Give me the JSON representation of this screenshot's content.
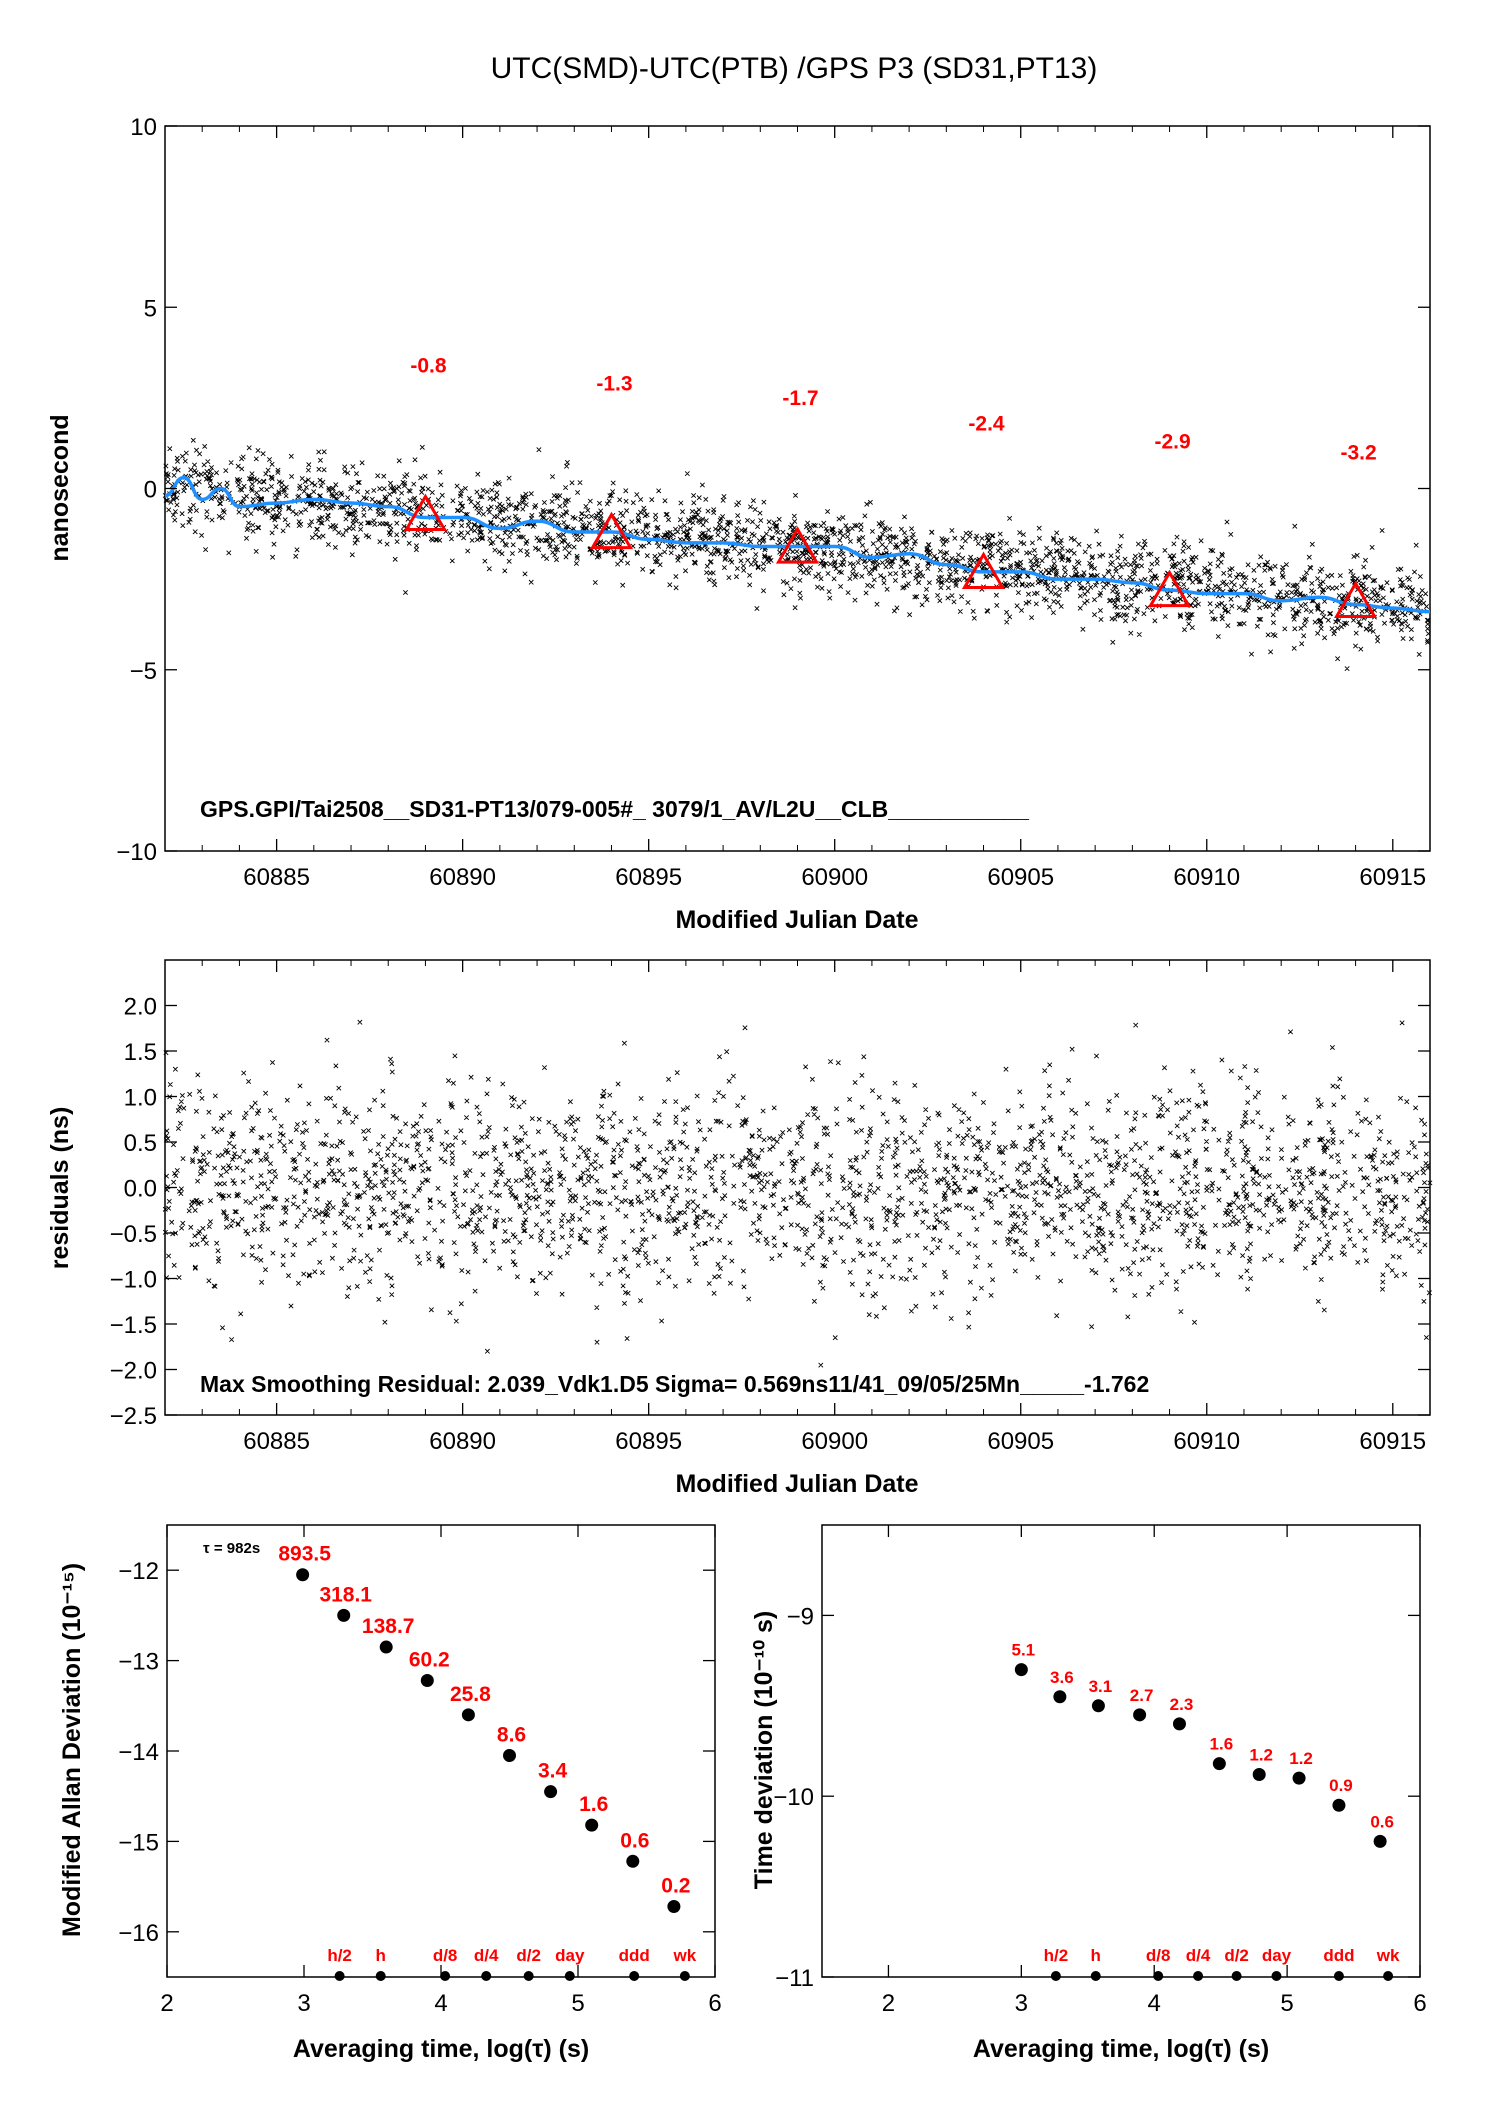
{
  "title": "UTC(SMD)-UTC(PTB)  /GPS  P3  (SD31,PT13)",
  "colors": {
    "smooth": "#1e90ff",
    "marker": "#ff0000",
    "points": "#000000",
    "labels": "#ff0000"
  },
  "chart_data": [
    {
      "type": "scatter",
      "xlabel": "Modified Julian Date",
      "ylabel": "nanosecond",
      "xlim": [
        60882,
        60916
      ],
      "ylim": [
        -10,
        10
      ],
      "xticks": [
        60885,
        60890,
        60895,
        60900,
        60905,
        60910,
        60915
      ],
      "yticks": [
        10,
        5,
        0,
        -5,
        -10
      ],
      "ytick_labels": [
        "10",
        "5",
        "0",
        "−5",
        "−10"
      ],
      "scatter_trend": {
        "start": 0.0,
        "end": -3.35,
        "spread": 0.58,
        "count": 2400
      },
      "smooth_line": {
        "x": [
          60882,
          60882.5,
          60883,
          60883.5,
          60884,
          60885,
          60886,
          60887,
          60888,
          60889,
          60890,
          60891,
          60892,
          60893,
          60894,
          60895,
          60896,
          60897,
          60898,
          60899,
          60900,
          60901,
          60902,
          60903,
          60904,
          60905,
          60906,
          60907,
          60908,
          60909,
          60910,
          60911,
          60912,
          60913,
          60914,
          60915,
          60916
        ],
        "y": [
          -0.2,
          0.3,
          -0.3,
          0.0,
          -0.5,
          -0.4,
          -0.3,
          -0.4,
          -0.5,
          -0.8,
          -0.8,
          -1.1,
          -0.9,
          -1.2,
          -1.2,
          -1.4,
          -1.5,
          -1.5,
          -1.6,
          -1.6,
          -1.6,
          -1.9,
          -1.8,
          -2.1,
          -2.3,
          -2.3,
          -2.5,
          -2.5,
          -2.6,
          -2.8,
          -2.9,
          -2.9,
          -3.1,
          -3.0,
          -3.2,
          -3.3,
          -3.4
        ]
      },
      "markers": [
        {
          "x": 60889,
          "y": -0.8,
          "label": "-0.8"
        },
        {
          "x": 60894,
          "y": -1.3,
          "label": "-1.3"
        },
        {
          "x": 60899,
          "y": -1.7,
          "label": "-1.7"
        },
        {
          "x": 60904,
          "y": -2.4,
          "label": "-2.4"
        },
        {
          "x": 60909,
          "y": -2.9,
          "label": "-2.9"
        },
        {
          "x": 60914,
          "y": -3.2,
          "label": "-3.2"
        }
      ],
      "annotation": "GPS.GPI/Tai2508__SD31-PT13/079-005#_  3079/1_AV/L2U__CLB___________"
    },
    {
      "type": "scatter",
      "xlabel": "Modified Julian Date",
      "ylabel": "residuals (ns)",
      "xlim": [
        60882,
        60916
      ],
      "ylim": [
        -2.5,
        2.5
      ],
      "xticks": [
        60885,
        60890,
        60895,
        60900,
        60905,
        60910,
        60915
      ],
      "yticks": [
        2.0,
        1.5,
        1.0,
        0.5,
        0.0,
        -0.5,
        -1.0,
        -1.5,
        -2.0,
        -2.5
      ],
      "ytick_labels": [
        "2.0",
        "1.5",
        "1.0",
        "0.5",
        "0.0",
        "−0.5",
        "−1.0",
        "−1.5",
        "−2.0",
        "−2.5"
      ],
      "scatter_trend": {
        "start": 0.0,
        "end": 0.0,
        "spread": 0.57,
        "count": 2400
      },
      "annotation": "Max Smoothing Residual: 2.039_Vdk1.D5  Sigma= 0.569ns11/41_09/05/25Mn_____-1.762"
    },
    {
      "type": "scatter",
      "xlabel": "Averaging time, log(τ) (s)",
      "ylabel": "Modified Allan Deviation (10⁻¹⁵)",
      "xlim": [
        2,
        6
      ],
      "ylim": [
        -16.5,
        -11.5
      ],
      "xticks": [
        2,
        3,
        4,
        5,
        6
      ],
      "yticks": [
        -12,
        -13,
        -14,
        -15,
        -16
      ],
      "ytick_labels": [
        "−12",
        "−13",
        "−14",
        "−15",
        "−16"
      ],
      "tau_note": "τ = 982s",
      "points": [
        {
          "x": 2.99,
          "y": -12.05,
          "label": "893.5"
        },
        {
          "x": 3.29,
          "y": -12.5,
          "label": "318.1"
        },
        {
          "x": 3.6,
          "y": -12.85,
          "label": "138.7"
        },
        {
          "x": 3.9,
          "y": -13.22,
          "label": "60.2"
        },
        {
          "x": 4.2,
          "y": -13.6,
          "label": "25.8"
        },
        {
          "x": 4.5,
          "y": -14.05,
          "label": "8.6"
        },
        {
          "x": 4.8,
          "y": -14.45,
          "label": "3.4"
        },
        {
          "x": 5.1,
          "y": -14.82,
          "label": "1.6"
        },
        {
          "x": 5.4,
          "y": -15.22,
          "label": "0.6"
        },
        {
          "x": 5.7,
          "y": -15.72,
          "label": "0.2"
        }
      ],
      "bottom_marks": [
        {
          "x": 3.26,
          "label": "h/2"
        },
        {
          "x": 3.56,
          "label": "h"
        },
        {
          "x": 4.03,
          "label": "d/8"
        },
        {
          "x": 4.33,
          "label": "d/4"
        },
        {
          "x": 4.64,
          "label": "d/2"
        },
        {
          "x": 4.94,
          "label": "day"
        },
        {
          "x": 5.41,
          "label": "ddd"
        },
        {
          "x": 5.78,
          "label": "wk"
        }
      ]
    },
    {
      "type": "scatter",
      "xlabel": "Averaging time, log(τ) (s)",
      "ylabel": "Time deviation (10⁻¹⁰ s)",
      "xlim": [
        1.5,
        6
      ],
      "ylim": [
        -11,
        -8.5
      ],
      "xticks": [
        2,
        3,
        4,
        5,
        6
      ],
      "yticks": [
        -9,
        -10,
        -11
      ],
      "ytick_labels": [
        "−9",
        "−10",
        "−11"
      ],
      "points": [
        {
          "x": 3.0,
          "y": -9.3,
          "label": "5.1"
        },
        {
          "x": 3.29,
          "y": -9.45,
          "label": "3.6"
        },
        {
          "x": 3.58,
          "y": -9.5,
          "label": "3.1"
        },
        {
          "x": 3.89,
          "y": -9.55,
          "label": "2.7"
        },
        {
          "x": 4.19,
          "y": -9.6,
          "label": "2.3"
        },
        {
          "x": 4.49,
          "y": -9.82,
          "label": "1.6"
        },
        {
          "x": 4.79,
          "y": -9.88,
          "label": "1.2"
        },
        {
          "x": 5.09,
          "y": -9.9,
          "label": "1.2"
        },
        {
          "x": 5.39,
          "y": -10.05,
          "label": "0.9"
        },
        {
          "x": 5.7,
          "y": -10.25,
          "label": "0.6"
        }
      ],
      "bottom_marks": [
        {
          "x": 3.26,
          "label": "h/2"
        },
        {
          "x": 3.56,
          "label": "h"
        },
        {
          "x": 4.03,
          "label": "d/8"
        },
        {
          "x": 4.33,
          "label": "d/4"
        },
        {
          "x": 4.62,
          "label": "d/2"
        },
        {
          "x": 4.92,
          "label": "day"
        },
        {
          "x": 5.39,
          "label": "ddd"
        },
        {
          "x": 5.76,
          "label": "wk"
        }
      ]
    }
  ]
}
